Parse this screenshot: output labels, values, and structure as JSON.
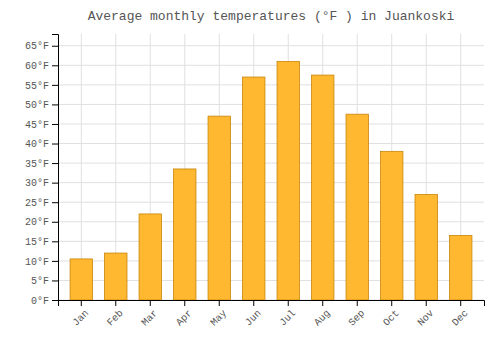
{
  "chart_data": {
    "type": "bar",
    "title": "Average monthly temperatures (°F ) in Juankoski",
    "categories": [
      "Jan",
      "Feb",
      "Mar",
      "Apr",
      "May",
      "Jun",
      "Jul",
      "Aug",
      "Sep",
      "Oct",
      "Nov",
      "Dec"
    ],
    "values": [
      10.5,
      12.0,
      22.0,
      33.5,
      47.0,
      57.0,
      61.0,
      57.5,
      47.5,
      38.0,
      27.0,
      16.5
    ],
    "color": "#FFB830",
    "ylim": [
      0,
      68
    ],
    "yticks": [
      {
        "value": 0,
        "label": "0°F"
      },
      {
        "value": 5,
        "label": "5°F"
      },
      {
        "value": 10,
        "label": "10°F"
      },
      {
        "value": 15,
        "label": "15°F"
      },
      {
        "value": 20,
        "label": "20°F"
      },
      {
        "value": 25,
        "label": "25°F"
      },
      {
        "value": 30,
        "label": "30°F"
      },
      {
        "value": 35,
        "label": "35°F"
      },
      {
        "value": 40,
        "label": "40°F"
      },
      {
        "value": 45,
        "label": "45°F"
      },
      {
        "value": 50,
        "label": "50°F"
      },
      {
        "value": 55,
        "label": "55°F"
      },
      {
        "value": 60,
        "label": "60°F"
      },
      {
        "value": 65,
        "label": "65°F"
      }
    ],
    "grid": true
  }
}
